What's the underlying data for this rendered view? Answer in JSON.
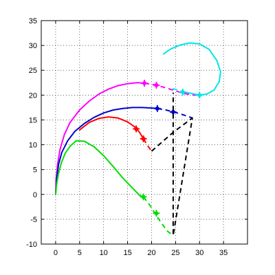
{
  "chart_data": {
    "type": "line",
    "title": "",
    "xlabel": "",
    "ylabel": "",
    "xlim": [
      -3,
      40
    ],
    "ylim": [
      -10,
      35
    ],
    "grid": true,
    "x_ticks": [
      "0",
      "5",
      "10",
      "15",
      "20",
      "25",
      "30",
      "35"
    ],
    "x_tick_values": [
      0,
      5,
      10,
      15,
      20,
      25,
      30,
      35
    ],
    "y_ticks": [
      "-10",
      "-5",
      "0",
      "5",
      "10",
      "15",
      "20",
      "25",
      "30",
      "35"
    ],
    "y_tick_values": [
      -10,
      -5,
      0,
      5,
      10,
      15,
      20,
      25,
      30,
      35
    ],
    "series": [
      {
        "color": "#ff00ff",
        "solid": [
          [
            0,
            0
          ],
          [
            0.1,
            3
          ],
          [
            0.4,
            6
          ],
          [
            0.9,
            9
          ],
          [
            1.8,
            12
          ],
          [
            3,
            14.5
          ],
          [
            5,
            17
          ],
          [
            7,
            18.8
          ],
          [
            9,
            20.2
          ],
          [
            11,
            21.2
          ],
          [
            13,
            21.9
          ],
          [
            15,
            22.3
          ],
          [
            17,
            22.5
          ],
          [
            18.5,
            22.4
          ]
        ],
        "dashed": [
          [
            18.5,
            22.4
          ],
          [
            20.5,
            22.1
          ],
          [
            22.5,
            21.6
          ],
          [
            24.5,
            21
          ],
          [
            26.5,
            20.4
          ],
          [
            28.5,
            20
          ],
          [
            29.5,
            20
          ]
        ],
        "markers": [
          [
            18.5,
            22.4
          ],
          [
            21,
            22
          ]
        ]
      },
      {
        "color": "#0000cc",
        "solid": [
          [
            0,
            0
          ],
          [
            0.2,
            3
          ],
          [
            0.6,
            6
          ],
          [
            1.3,
            8.5
          ],
          [
            2.5,
            10.8
          ],
          [
            4,
            12.7
          ],
          [
            6,
            14.3
          ],
          [
            8,
            15.5
          ],
          [
            10,
            16.4
          ],
          [
            12,
            17
          ],
          [
            14,
            17.3
          ],
          [
            16,
            17.5
          ],
          [
            18,
            17.5
          ],
          [
            20,
            17.4
          ],
          [
            21.2,
            17.3
          ]
        ],
        "dashed": [
          [
            21.2,
            17.3
          ],
          [
            23,
            17
          ],
          [
            25,
            16.5
          ],
          [
            27,
            15.9
          ],
          [
            28.5,
            15.4
          ]
        ],
        "markers": [
          [
            21.2,
            17.3
          ],
          [
            24.5,
            16.6
          ]
        ]
      },
      {
        "color": "#ff0000",
        "solid": [
          [
            5,
            13
          ],
          [
            7,
            14.5
          ],
          [
            9,
            15.3
          ],
          [
            11,
            15.6
          ],
          [
            13,
            15.4
          ],
          [
            15,
            14.6
          ],
          [
            16.5,
            13.6
          ],
          [
            17.5,
            12.5
          ],
          [
            18.3,
            11.2
          ]
        ],
        "dashed": [
          [
            18.3,
            11.2
          ],
          [
            19.2,
            9.8
          ],
          [
            20,
            8.7
          ]
        ],
        "markers": [
          [
            16.8,
            13.2
          ],
          [
            18.3,
            11.2
          ]
        ]
      },
      {
        "color": "#00dd00",
        "solid": [
          [
            0,
            0
          ],
          [
            0.2,
            2
          ],
          [
            0.6,
            4.2
          ],
          [
            1.2,
            6.4
          ],
          [
            2,
            8.3
          ],
          [
            3,
            9.7
          ],
          [
            4.3,
            10.8
          ],
          [
            6,
            10.7
          ],
          [
            8,
            9.6
          ],
          [
            10,
            7.8
          ],
          [
            12,
            5.6
          ],
          [
            14,
            3.3
          ],
          [
            16,
            1.3
          ],
          [
            17.5,
            -0.2
          ],
          [
            18.3,
            -0.5
          ]
        ],
        "dashed": [
          [
            18.3,
            -0.5
          ],
          [
            19.5,
            -2
          ],
          [
            20.7,
            -3.8
          ],
          [
            22,
            -5.7
          ],
          [
            23.3,
            -7.4
          ],
          [
            24.5,
            -8.3
          ]
        ],
        "markers": [
          [
            18.3,
            -0.5
          ],
          [
            21,
            -3.8
          ]
        ]
      },
      {
        "color": "#00e5e5",
        "solid": [
          [
            22.5,
            28.3
          ],
          [
            24,
            29.3
          ],
          [
            26,
            30.1
          ],
          [
            28,
            30.5
          ],
          [
            30,
            30.3
          ],
          [
            32,
            29.2
          ],
          [
            33.6,
            27
          ],
          [
            34.4,
            24.7
          ],
          [
            34.1,
            22.7
          ],
          [
            33,
            21
          ],
          [
            31.5,
            20.2
          ],
          [
            30,
            20
          ],
          [
            28.5,
            20.3
          ],
          [
            27,
            20.6
          ]
        ],
        "dashed": [
          [
            27,
            20.6
          ],
          [
            25.5,
            21
          ],
          [
            24,
            21.4
          ]
        ],
        "markers": [
          [
            30,
            20
          ],
          [
            26.5,
            20.6
          ]
        ]
      },
      {
        "color": "#000000",
        "solid": [],
        "dashed": [
          [
            20,
            8.7
          ],
          [
            24.5,
            12.5
          ],
          [
            28.5,
            15.4
          ],
          [
            24.5,
            -8.3
          ],
          [
            24.5,
            20.5
          ]
        ],
        "markers": []
      }
    ]
  }
}
